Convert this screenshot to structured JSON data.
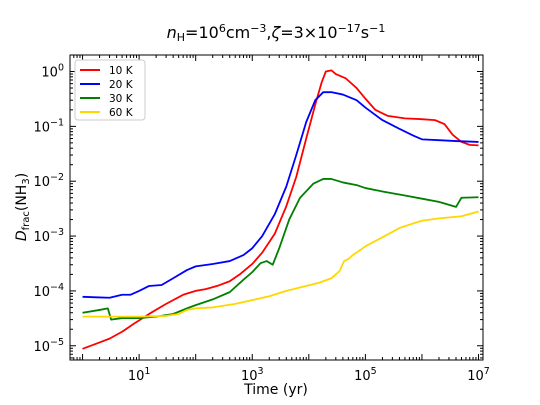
{
  "chart_data": {
    "type": "line",
    "title": {
      "n": "n",
      "n_sub": "H",
      "eq1": "=10",
      "exp1": "6",
      "unit1": "cm",
      "exp2": "−3",
      "sep": ",",
      "zeta": "ζ",
      "eq2": "=3×10",
      "exp3": "−17",
      "unit2": "s",
      "exp4": "−1"
    },
    "xlabel": "Time (yr)",
    "ylabel": {
      "main": "D",
      "sub": "frac",
      "paren_open": "(NH",
      "sub3": "3",
      "paren_close": ")"
    },
    "xscale": "log",
    "yscale": "log",
    "xlim": [
      0.6,
      12000000
    ],
    "ylim": [
      5.5e-06,
      2.0
    ],
    "x_ticks": [
      {
        "value": 10,
        "base": "10",
        "exp": "1"
      },
      {
        "value": 1000,
        "base": "10",
        "exp": "3"
      },
      {
        "value": 100000,
        "base": "10",
        "exp": "5"
      },
      {
        "value": 10000000,
        "base": "10",
        "exp": "7"
      }
    ],
    "y_ticks": [
      {
        "value": 1e-05,
        "base": "10",
        "exp": "−5"
      },
      {
        "value": 0.0001,
        "base": "10",
        "exp": "−4"
      },
      {
        "value": 0.001,
        "base": "10",
        "exp": "−3"
      },
      {
        "value": 0.01,
        "base": "10",
        "exp": "−2"
      },
      {
        "value": 0.1,
        "base": "10",
        "exp": "−1"
      },
      {
        "value": 1,
        "base": "10",
        "exp": "0"
      }
    ],
    "grid": false,
    "legend_position": "top-left",
    "series": [
      {
        "name": "10 K",
        "color": "#ff0000",
        "points": [
          [
            1,
            8.8e-06
          ],
          [
            2,
            1.15e-05
          ],
          [
            3,
            1.35e-05
          ],
          [
            5,
            1.8e-05
          ],
          [
            8,
            2.5e-05
          ],
          [
            15,
            3.8e-05
          ],
          [
            30,
            5.8e-05
          ],
          [
            60,
            8.5e-05
          ],
          [
            100,
            0.0001
          ],
          [
            150,
            0.000108
          ],
          [
            250,
            0.000125
          ],
          [
            400,
            0.00015
          ],
          [
            600,
            0.0002
          ],
          [
            1000,
            0.00031
          ],
          [
            1500,
            0.0005
          ],
          [
            2500,
            0.0011
          ],
          [
            4000,
            0.0035
          ],
          [
            6000,
            0.012
          ],
          [
            9000,
            0.06
          ],
          [
            13000,
            0.25
          ],
          [
            17000,
            0.65
          ],
          [
            20000,
            1.0
          ],
          [
            25000,
            1.05
          ],
          [
            30000,
            0.9
          ],
          [
            45000,
            0.75
          ],
          [
            70000,
            0.5
          ],
          [
            100000,
            0.32
          ],
          [
            150000,
            0.2
          ],
          [
            250000,
            0.155
          ],
          [
            500000,
            0.14
          ],
          [
            1000000,
            0.135
          ],
          [
            1700000,
            0.13
          ],
          [
            2500000,
            0.11
          ],
          [
            3500000,
            0.07
          ],
          [
            5000000,
            0.052
          ],
          [
            7000000,
            0.046
          ],
          [
            10000000,
            0.045
          ]
        ]
      },
      {
        "name": "20 K",
        "color": "#0000ff",
        "points": [
          [
            1,
            7.8e-05
          ],
          [
            2,
            7.6e-05
          ],
          [
            3,
            7.5e-05
          ],
          [
            5,
            8.5e-05
          ],
          [
            7,
            8.5e-05
          ],
          [
            10,
            0.0001
          ],
          [
            15,
            0.000123
          ],
          [
            25,
            0.000128
          ],
          [
            40,
            0.00017
          ],
          [
            70,
            0.00024
          ],
          [
            100,
            0.00028
          ],
          [
            200,
            0.00031
          ],
          [
            400,
            0.00035
          ],
          [
            700,
            0.00045
          ],
          [
            1000,
            0.0006
          ],
          [
            1500,
            0.001
          ],
          [
            2500,
            0.0025
          ],
          [
            4000,
            0.008
          ],
          [
            6000,
            0.03
          ],
          [
            9000,
            0.12
          ],
          [
            13000,
            0.3
          ],
          [
            18000,
            0.42
          ],
          [
            25000,
            0.42
          ],
          [
            40000,
            0.38
          ],
          [
            70000,
            0.3
          ],
          [
            100000,
            0.22
          ],
          [
            200000,
            0.13
          ],
          [
            400000,
            0.09
          ],
          [
            700000,
            0.068
          ],
          [
            1000000,
            0.058
          ],
          [
            2000000,
            0.056
          ],
          [
            4000000,
            0.054
          ],
          [
            10000000,
            0.052
          ]
        ]
      },
      {
        "name": "30 K",
        "color": "#008000",
        "points": [
          [
            1,
            4e-05
          ],
          [
            2,
            4.5e-05
          ],
          [
            2.8,
            4.8e-05
          ],
          [
            3.2,
            3e-05
          ],
          [
            5,
            3.2e-05
          ],
          [
            10,
            3.2e-05
          ],
          [
            20,
            3.4e-05
          ],
          [
            40,
            3.8e-05
          ],
          [
            70,
            4.8e-05
          ],
          [
            100,
            5.5e-05
          ],
          [
            200,
            7e-05
          ],
          [
            400,
            9.5e-05
          ],
          [
            700,
            0.00016
          ],
          [
            1000,
            0.00022
          ],
          [
            1400,
            0.00032
          ],
          [
            1800,
            0.00035
          ],
          [
            2300,
            0.0003
          ],
          [
            3000,
            0.0006
          ],
          [
            4500,
            0.002
          ],
          [
            7000,
            0.005
          ],
          [
            12000,
            0.009
          ],
          [
            18000,
            0.011
          ],
          [
            25000,
            0.011
          ],
          [
            40000,
            0.0095
          ],
          [
            70000,
            0.0085
          ],
          [
            100000,
            0.0075
          ],
          [
            200000,
            0.0065
          ],
          [
            500000,
            0.0055
          ],
          [
            1000000,
            0.0048
          ],
          [
            2000000,
            0.0042
          ],
          [
            4000000,
            0.0034
          ],
          [
            5000000,
            0.005
          ],
          [
            10000000,
            0.0051
          ]
        ]
      },
      {
        "name": "60 K",
        "color": "#ffd700",
        "points": [
          [
            1,
            3.4e-05
          ],
          [
            5,
            3.4e-05
          ],
          [
            10,
            3.4e-05
          ],
          [
            30,
            3.5e-05
          ],
          [
            50,
            3.8e-05
          ],
          [
            70,
            4.5e-05
          ],
          [
            100,
            4.8e-05
          ],
          [
            200,
            5e-05
          ],
          [
            500,
            5.8e-05
          ],
          [
            1000,
            6.8e-05
          ],
          [
            2000,
            8e-05
          ],
          [
            4000,
            0.0001
          ],
          [
            8000,
            0.00012
          ],
          [
            15000,
            0.00014
          ],
          [
            25000,
            0.00017
          ],
          [
            35000,
            0.00023
          ],
          [
            42000,
            0.00035
          ],
          [
            50000,
            0.00038
          ],
          [
            60000,
            0.00045
          ],
          [
            80000,
            0.00055
          ],
          [
            100000,
            0.00065
          ],
          [
            200000,
            0.00095
          ],
          [
            400000,
            0.0014
          ],
          [
            700000,
            0.0017
          ],
          [
            1000000,
            0.0019
          ],
          [
            2000000,
            0.0021
          ],
          [
            5000000,
            0.0023
          ],
          [
            10000000,
            0.0028
          ]
        ]
      }
    ]
  }
}
